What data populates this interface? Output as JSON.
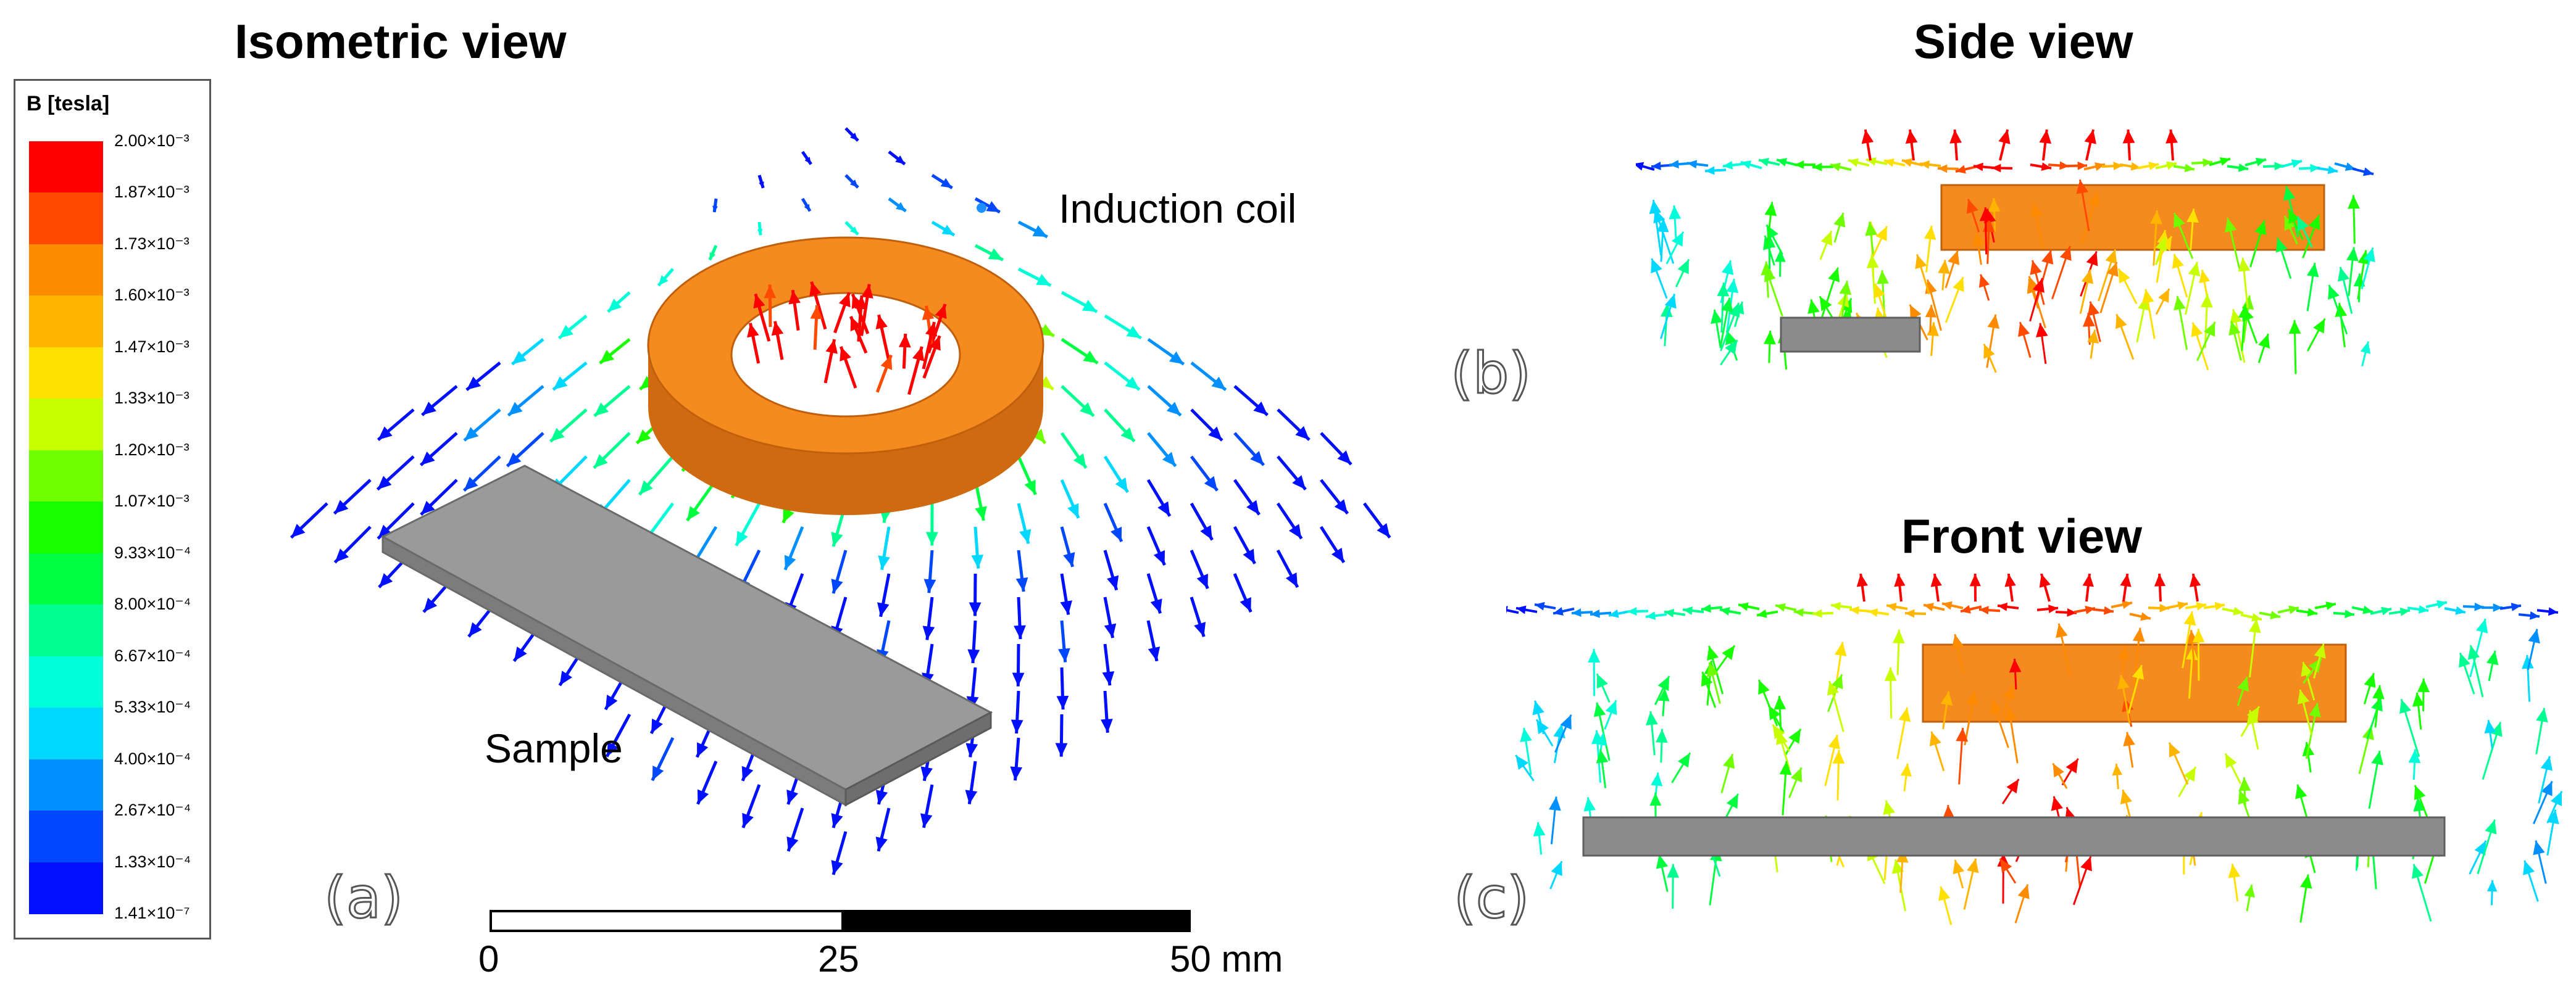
{
  "titles": {
    "isometric": "Isometric view",
    "side": "Side view",
    "front": "Front view"
  },
  "labels": {
    "coil": "Induction coil",
    "sample": "Sample"
  },
  "panels": {
    "a": "(a)",
    "b": "(b)",
    "c": "(c)"
  },
  "legend": {
    "title": "B [tesla]",
    "ticks": [
      "2.00×10⁻³",
      "1.87×10⁻³",
      "1.73×10⁻³",
      "1.60×10⁻³",
      "1.47×10⁻³",
      "1.33×10⁻³",
      "1.20×10⁻³",
      "1.07×10⁻³",
      "9.33×10⁻⁴",
      "8.00×10⁻⁴",
      "6.67×10⁻⁴",
      "5.33×10⁻⁴",
      "4.00×10⁻⁴",
      "2.67×10⁻⁴",
      "1.33×10⁻⁴",
      "1.41×10⁻⁷"
    ],
    "colors": [
      "#ff0000",
      "#ff4a00",
      "#ff8c00",
      "#ffb400",
      "#ffe000",
      "#c8ff00",
      "#70ff00",
      "#18ff00",
      "#00ff40",
      "#00ff90",
      "#00ffd8",
      "#00d8ff",
      "#0090ff",
      "#0048ff",
      "#0010ff"
    ]
  },
  "scale": {
    "labels": [
      "0",
      "25",
      "50 mm"
    ]
  },
  "colors": {
    "coil": "#f58a1f",
    "coil_dark": "#d06a10",
    "sample": "#8c8c8c"
  }
}
